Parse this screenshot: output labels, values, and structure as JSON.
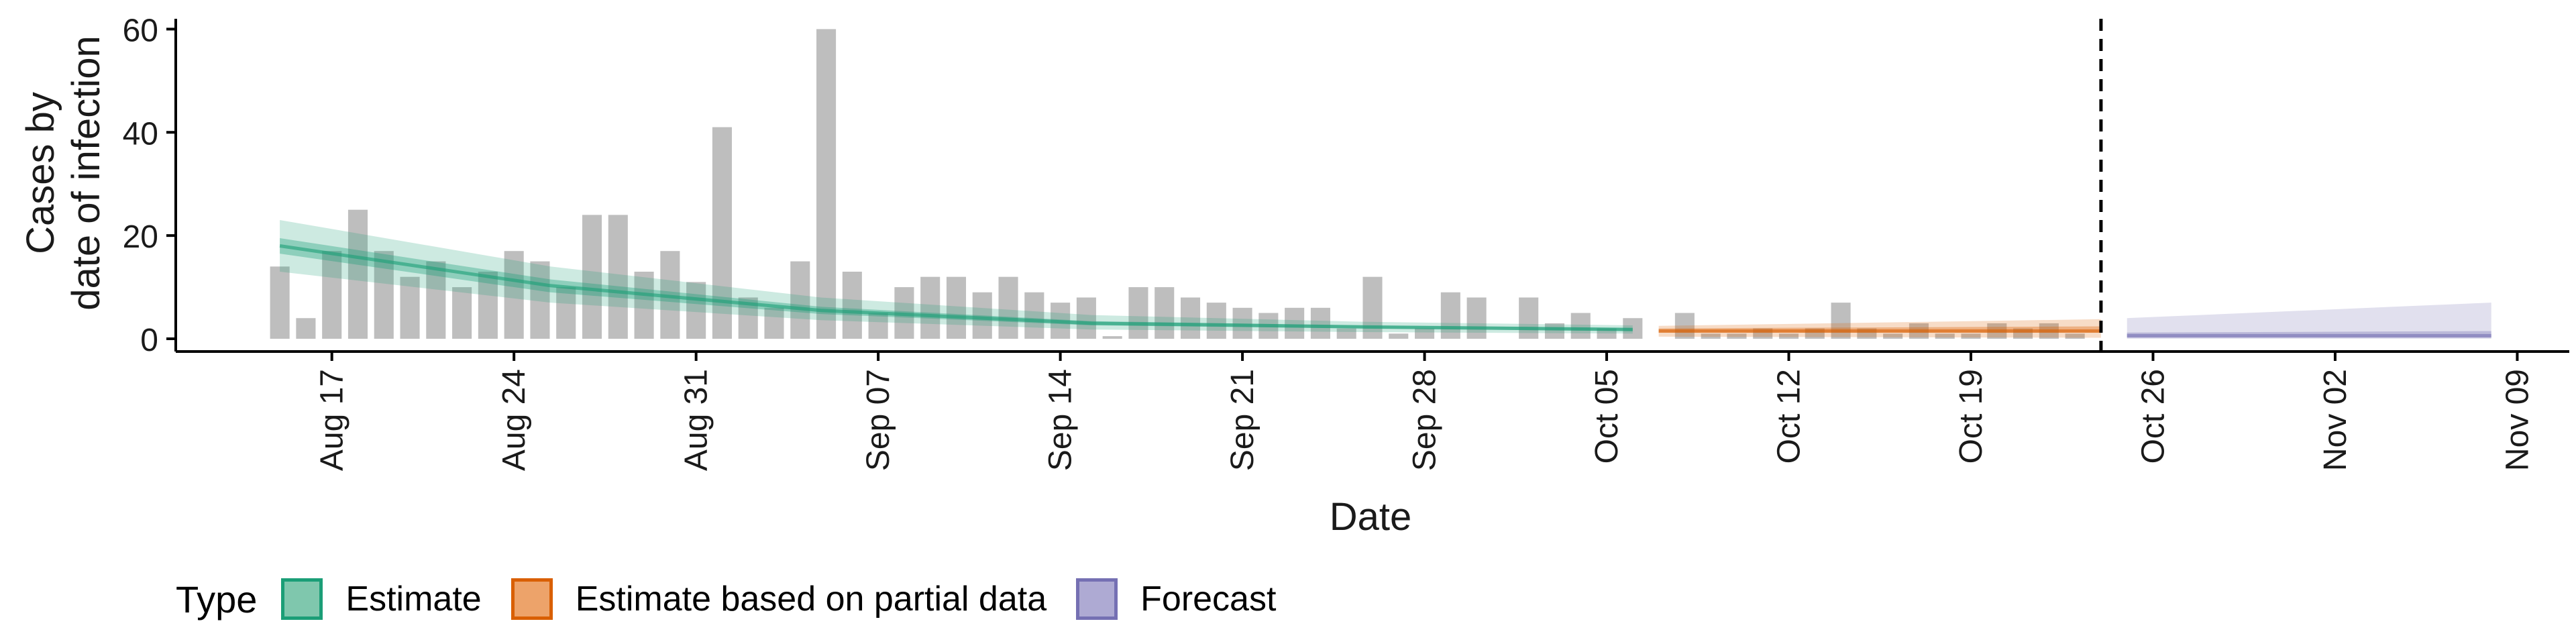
{
  "chart_data": {
    "type": "bar",
    "title": "",
    "xlabel": "Date",
    "ylabel_lines": [
      "Cases by",
      "date of infection"
    ],
    "ylim": [
      0,
      62
    ],
    "y_ticks": [
      0,
      20,
      40,
      60
    ],
    "x_tick_dates": [
      "2020-08-17",
      "2020-08-24",
      "2020-08-31",
      "2020-09-07",
      "2020-09-14",
      "2020-09-21",
      "2020-09-28",
      "2020-10-05",
      "2020-10-12",
      "2020-10-19",
      "2020-10-26",
      "2020-11-02",
      "2020-11-09"
    ],
    "x_tick_labels": [
      "Aug 17",
      "Aug 24",
      "Aug 31",
      "Sep 07",
      "Sep 14",
      "Sep 21",
      "Sep 28",
      "Oct 05",
      "Oct 12",
      "Oct 19",
      "Oct 26",
      "Nov 02",
      "Nov 09"
    ],
    "xlim": [
      "2020-08-11",
      "2020-11-11"
    ],
    "bars_start": "2020-08-15",
    "bars_end": "2020-10-24",
    "bar_values": [
      14,
      4,
      17,
      25,
      17,
      12,
      15,
      10,
      13,
      17,
      15,
      10,
      24,
      24,
      13,
      17,
      11,
      41,
      8,
      6,
      15,
      60,
      13,
      5,
      10,
      12,
      12,
      9,
      12,
      9,
      7,
      8,
      0.5,
      10,
      10,
      8,
      7,
      6,
      5,
      6,
      6,
      2,
      12,
      1,
      2,
      9,
      8,
      0,
      8,
      3,
      5,
      2,
      4,
      0,
      5,
      1,
      1,
      2,
      1,
      2,
      7,
      2,
      1,
      3,
      1,
      1,
      3,
      2,
      3,
      1
    ],
    "vline_date": "2020-10-24",
    "grid": false,
    "series": [
      {
        "name": "Estimate",
        "start": "2020-08-15",
        "end": "2020-10-06",
        "median": [
          18.0,
          10.3,
          5.5,
          3.0,
          2.3,
          1.8
        ],
        "inner": [
          [
            16.5,
            19.5
          ],
          [
            9.0,
            11.5
          ],
          [
            4.8,
            6.2
          ],
          [
            2.6,
            3.4
          ],
          [
            2.0,
            2.6
          ],
          [
            1.5,
            2.1
          ]
        ],
        "outer": [
          [
            13.0,
            23.0
          ],
          [
            7.0,
            14.0
          ],
          [
            3.6,
            8.0
          ],
          [
            1.8,
            4.6
          ],
          [
            1.3,
            3.3
          ],
          [
            1.0,
            2.6
          ]
        ]
      },
      {
        "name": "Estimate based on partial data",
        "start": "2020-10-07",
        "end": "2020-10-24",
        "median": [
          1.5,
          1.5
        ],
        "inner": [
          [
            1.2,
            2.0
          ],
          [
            1.2,
            2.4
          ]
        ],
        "outer": [
          [
            0.4,
            2.5
          ],
          [
            0.2,
            3.8
          ]
        ]
      },
      {
        "name": "Forecast",
        "start": "2020-10-25",
        "end": "2020-11-08",
        "median": [
          0.6,
          0.6
        ],
        "inner": [
          [
            0.2,
            1.2
          ],
          [
            0.2,
            1.5
          ]
        ],
        "outer": [
          [
            0.0,
            4.0
          ],
          [
            0.0,
            7.0
          ]
        ]
      }
    ]
  },
  "legend": {
    "title": "Type",
    "items": [
      {
        "label": "Estimate",
        "fill": "#7fc7ad",
        "stroke": "#1b9e77"
      },
      {
        "label": "Estimate based on partial data",
        "fill": "#eda36a",
        "stroke": "#d95f02"
      },
      {
        "label": "Forecast",
        "fill": "#aeaad3",
        "stroke": "#7570b3"
      }
    ]
  },
  "colors": {
    "bars": "#bebebe",
    "estimate": "#1b9e77",
    "partial": "#d95f02",
    "forecast": "#7570b3",
    "axis": "#000000"
  }
}
